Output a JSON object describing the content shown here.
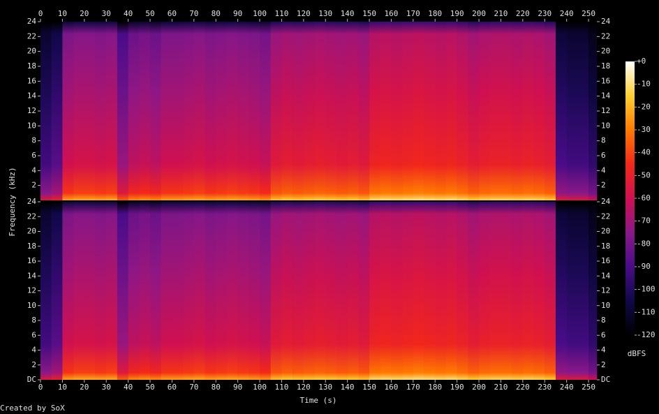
{
  "chart_data": {
    "type": "spectrogram",
    "xlabel": "Time (s)",
    "ylabel": "Frequency (kHz)",
    "footer": "Created by SoX",
    "colorbar_label": "dBFS",
    "xlim": [
      0,
      253.8
    ],
    "xticks": [
      0,
      10,
      20,
      30,
      40,
      50,
      60,
      70,
      80,
      90,
      100,
      110,
      120,
      130,
      140,
      150,
      160,
      170,
      180,
      190,
      200,
      210,
      220,
      230,
      240,
      250
    ],
    "bins": [
      0,
      5,
      10,
      15,
      20,
      25,
      30,
      35,
      40,
      45,
      50,
      55,
      60,
      65,
      70,
      75,
      80,
      85,
      90,
      95,
      100,
      105,
      110,
      115,
      120,
      125,
      130,
      135,
      140,
      145,
      150,
      155,
      160,
      165,
      170,
      175,
      180,
      185,
      190,
      195,
      200,
      205,
      210,
      215,
      220,
      225,
      230,
      235,
      240,
      245,
      250,
      253.8
    ],
    "ylim": [
      0,
      24
    ],
    "clim": [
      -120,
      0
    ],
    "colormap": [
      "#000000",
      "#10084a",
      "#4a0c88",
      "#8a1888",
      "#d01050",
      "#f42818",
      "#ff7a00",
      "#ffd030",
      "#ffffff"
    ],
    "cticks": [
      {
        "value": 0,
        "label": "+0"
      },
      -10,
      -20,
      -30,
      -40,
      -50,
      -60,
      -70,
      -80,
      -90,
      -100,
      -110,
      -120
    ],
    "channels": [
      {
        "yticks": [
          2,
          4,
          6,
          8,
          10,
          12,
          14,
          16,
          18,
          20,
          22,
          24
        ],
        "values": [
          -100,
          -95,
          -68,
          -66,
          -66,
          -67,
          -66,
          -80,
          -72,
          -70,
          -72,
          -68,
          -68,
          -67,
          -66,
          -68,
          -67,
          -66,
          -67,
          -68,
          -70,
          -62,
          -60,
          -61,
          -60,
          -59,
          -60,
          -61,
          -60,
          -62,
          -56,
          -55,
          -56,
          -55,
          -54,
          -55,
          -56,
          -55,
          -57,
          -60,
          -58,
          -57,
          -57,
          -58,
          -57,
          -58,
          -60,
          -98,
          -100,
          -100,
          -105
        ]
      },
      {
        "yticks": [
          {
            "value": 0,
            "label": "DC"
          },
          2,
          4,
          6,
          8,
          10,
          12,
          14,
          16,
          18,
          20,
          22,
          24
        ],
        "values": [
          -100,
          -95,
          -68,
          -66,
          -66,
          -67,
          -66,
          -80,
          -72,
          -70,
          -72,
          -68,
          -68,
          -67,
          -66,
          -68,
          -67,
          -66,
          -67,
          -68,
          -70,
          -62,
          -60,
          -61,
          -60,
          -59,
          -60,
          -61,
          -60,
          -62,
          -56,
          -55,
          -56,
          -55,
          -54,
          -55,
          -56,
          -55,
          -57,
          -60,
          -58,
          -57,
          -57,
          -58,
          -57,
          -58,
          -60,
          -98,
          -100,
          -100,
          -105
        ]
      }
    ]
  }
}
